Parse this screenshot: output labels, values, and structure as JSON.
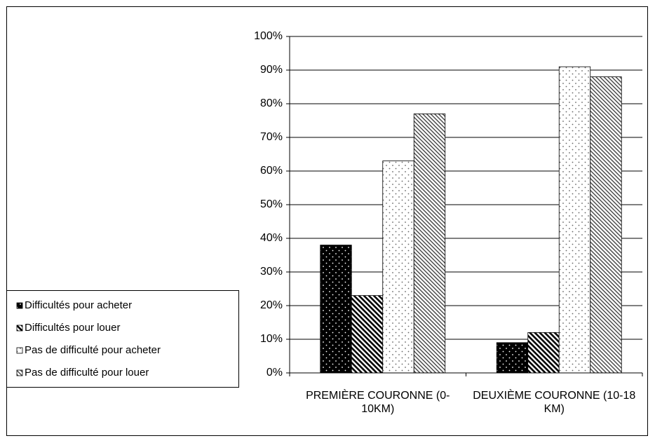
{
  "chart_data": {
    "type": "bar",
    "categories": [
      "PREMIÈRE COURONNE (0-10KM)",
      "DEUXIÈME COURONNE (10-18 KM)"
    ],
    "series": [
      {
        "name": "Difficultés pour acheter",
        "color": "#000000",
        "pattern": "dots",
        "values": [
          38,
          9
        ]
      },
      {
        "name": "Difficultés pour louer",
        "color": "#000000",
        "pattern": "hatch",
        "values": [
          23,
          12
        ]
      },
      {
        "name": "Pas de difficulté pour acheter",
        "color": "#ffffff",
        "pattern": "dots",
        "values": [
          63,
          91
        ]
      },
      {
        "name": "Pas de difficulté pour louer",
        "color": "#ffffff",
        "pattern": "hatch",
        "values": [
          77,
          88
        ]
      }
    ],
    "ylim": [
      0,
      100
    ],
    "yticks": [
      {
        "value": 0,
        "label": "0%"
      },
      {
        "value": 10,
        "label": "10%"
      },
      {
        "value": 20,
        "label": "20%"
      },
      {
        "value": 30,
        "label": "30%"
      },
      {
        "value": 40,
        "label": "40%"
      },
      {
        "value": 50,
        "label": "50%"
      },
      {
        "value": 60,
        "label": "60%"
      },
      {
        "value": 70,
        "label": "70%"
      },
      {
        "value": 80,
        "label": "80%"
      },
      {
        "value": 90,
        "label": "90%"
      },
      {
        "value": 100,
        "label": "100%"
      }
    ],
    "grid": true,
    "legend": "left"
  }
}
